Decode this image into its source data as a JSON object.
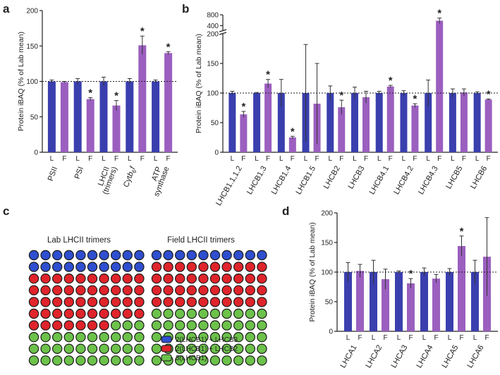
{
  "colors": {
    "lab": "#3a3fae",
    "field": "#9b5fbf",
    "lhcb3": "#2f4fd0",
    "lhcb2": "#e0242b",
    "lhcb1": "#6cc24a",
    "axis": "#222222"
  },
  "panels": {
    "a": {
      "letter": "a"
    },
    "b": {
      "letter": "b"
    },
    "c": {
      "letter": "c"
    },
    "d": {
      "letter": "d"
    }
  },
  "bar_labels": {
    "lab": "L",
    "field": "F"
  },
  "significance_marker": "*",
  "chart_data": [
    {
      "id": "a",
      "type": "bar",
      "title": "",
      "ylabel": "Protein iBAQ (% of Lab mean)",
      "ylim": [
        0,
        200
      ],
      "yticks": [
        0,
        50,
        100,
        150,
        200
      ],
      "reference_line": 100,
      "categories": [
        "PSII",
        "PSI",
        "LHCII (trimers)",
        "Cytb6f",
        "ATP synthase"
      ],
      "category_label_lines": [
        [
          "PSII"
        ],
        [
          "PSI"
        ],
        [
          "LHCII",
          "(trimers)"
        ],
        [
          "Cytb6f"
        ],
        [
          "ATP",
          "synthase"
        ]
      ],
      "series": [
        {
          "name": "L",
          "values": [
            100,
            100,
            100,
            100,
            100
          ],
          "errors": [
            2,
            4,
            6,
            4,
            2
          ]
        },
        {
          "name": "F",
          "values": [
            99,
            75,
            66,
            151,
            140
          ],
          "errors": [
            1,
            2,
            7,
            13,
            2
          ]
        }
      ],
      "significant": [
        false,
        true,
        true,
        true,
        true
      ]
    },
    {
      "id": "b",
      "type": "bar",
      "title": "",
      "ylabel": "Protein iBAQ (% of Lab mean)",
      "ylim_lower": [
        0,
        200
      ],
      "yticks_lower": [
        0,
        50,
        100,
        150,
        200
      ],
      "ylim_upper": [
        200,
        800
      ],
      "yticks_upper": [
        400,
        800
      ],
      "reference_line": 100,
      "categories": [
        "LHCB1.1,1.2",
        "LHCB1.3",
        "LHCB1.4",
        "LHCB1.5",
        "LHCB2",
        "LHCB3",
        "LHCB4.1",
        "LHCB4.2",
        "LHCB4.3",
        "LHCB5",
        "LHCB6"
      ],
      "series": [
        {
          "name": "L",
          "values": [
            100,
            100,
            100,
            100,
            100,
            100,
            100,
            100,
            100,
            100,
            100
          ],
          "errors": [
            3,
            1,
            23,
            82,
            12,
            10,
            3,
            4,
            22,
            7,
            2
          ]
        },
        {
          "name": "F",
          "values": [
            64,
            116,
            25,
            82,
            76,
            93,
            111,
            79,
            580,
            101,
            89
          ],
          "errors": [
            5,
            7,
            2,
            68,
            12,
            10,
            2,
            3,
            100,
            6,
            1
          ]
        }
      ],
      "significant": [
        true,
        true,
        true,
        false,
        true,
        false,
        true,
        true,
        true,
        false,
        true
      ]
    },
    {
      "id": "c",
      "type": "dot_grid",
      "title": "",
      "grids": [
        {
          "title": "Lab LHCII trimers",
          "rows": 10,
          "cols": 10,
          "counts": {
            "2(LHCB1) + LHCB3": 20,
            "2(LHCB1) + LHCB2": 47,
            "3(LHCB1)": 33
          }
        },
        {
          "title": "Field LHCII trimers",
          "rows": 10,
          "cols": 10,
          "counts": {
            "2(LHCB1) + LHCB3": 10,
            "2(LHCB1) + LHCB2": 40,
            "3(LHCB1)": 50
          }
        }
      ],
      "legend": [
        "2(LHCB1) + LHCB3",
        "2(LHCB1) + LHCB2",
        "3(LHCB1)"
      ]
    },
    {
      "id": "d",
      "type": "bar",
      "title": "",
      "ylabel": "Protein iBAQ (% of Lab mean)",
      "ylim": [
        0,
        200
      ],
      "yticks": [
        0,
        50,
        100,
        150,
        200
      ],
      "reference_line": 100,
      "categories": [
        "LHCA1",
        "LHCA2",
        "LHCA3",
        "LHCA4",
        "LHCA5",
        "LHCA6"
      ],
      "series": [
        {
          "name": "L",
          "values": [
            100,
            100,
            100,
            100,
            100,
            100
          ],
          "errors": [
            16,
            20,
            2,
            7,
            6,
            20
          ]
        },
        {
          "name": "F",
          "values": [
            102,
            88,
            81,
            89,
            144,
            126
          ],
          "errors": [
            11,
            17,
            8,
            7,
            17,
            66
          ]
        }
      ],
      "significant": [
        false,
        false,
        true,
        false,
        true,
        false
      ]
    }
  ]
}
